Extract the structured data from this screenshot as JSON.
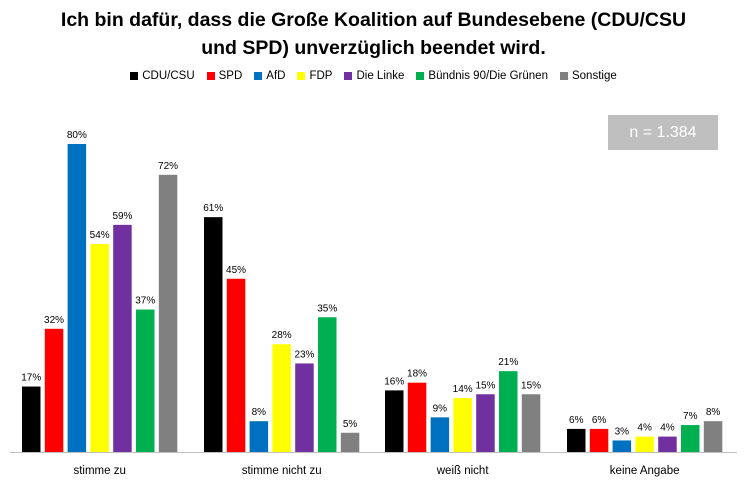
{
  "chart_data": {
    "type": "bar",
    "title_line1": "Ich bin dafür, dass die Große Koalition auf Bundesebene (CDU/CSU",
    "title_line2": "und SPD) unverzüglich beendet wird.",
    "annotation": "n = 1.384",
    "categories": [
      "stimme zu",
      "stimme nicht zu",
      "weiß nicht",
      "keine Angabe"
    ],
    "series": [
      {
        "name": "CDU/CSU",
        "color": "#000000",
        "values": [
          17,
          61,
          16,
          6
        ]
      },
      {
        "name": "SPD",
        "color": "#ff0000",
        "values": [
          32,
          45,
          18,
          6
        ]
      },
      {
        "name": "AfD",
        "color": "#0070c0",
        "values": [
          80,
          8,
          9,
          3
        ]
      },
      {
        "name": "FDP",
        "color": "#ffff00",
        "values": [
          54,
          28,
          14,
          4
        ]
      },
      {
        "name": "Die Linke",
        "color": "#7030a0",
        "values": [
          59,
          23,
          15,
          4
        ]
      },
      {
        "name": "Bündnis 90/Die Grünen",
        "color": "#00b050",
        "values": [
          37,
          35,
          21,
          7
        ]
      },
      {
        "name": "Sonstige",
        "color": "#808080",
        "values": [
          72,
          5,
          15,
          8
        ]
      }
    ],
    "value_suffix": "%",
    "ylim": [
      0,
      80
    ],
    "legend_position": "top",
    "grid": false
  }
}
